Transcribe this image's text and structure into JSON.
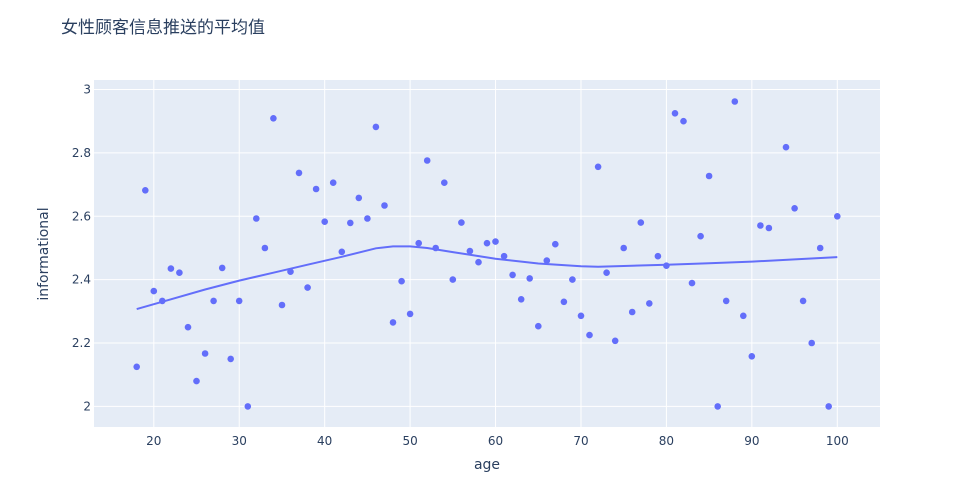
{
  "chart_data": {
    "type": "scatter",
    "title": "女性顾客信息推送的平均值",
    "xlabel": "age",
    "ylabel": "informational",
    "xlim": [
      13,
      105
    ],
    "ylim": [
      1.935,
      3.03
    ],
    "x_ticks": [
      20,
      30,
      40,
      50,
      60,
      70,
      80,
      90,
      100
    ],
    "y_ticks": [
      2,
      2.2,
      2.4,
      2.6,
      2.8,
      3
    ],
    "grid": true,
    "marker_color": "#636efa",
    "plot_bg": "#e5ecf6",
    "series": [
      {
        "mode": "markers",
        "x": [
          18,
          19,
          20,
          21,
          22,
          23,
          24,
          25,
          26,
          27,
          28,
          29,
          30,
          31,
          32,
          33,
          34,
          35,
          36,
          37,
          38,
          39,
          40,
          41,
          42,
          43,
          44,
          45,
          46,
          47,
          48,
          49,
          50,
          51,
          52,
          53,
          54,
          55,
          56,
          57,
          58,
          59,
          60,
          61,
          62,
          63,
          64,
          65,
          66,
          67,
          68,
          69,
          70,
          71,
          72,
          73,
          74,
          75,
          76,
          77,
          78,
          79,
          80,
          81,
          82,
          83,
          84,
          85,
          86,
          87,
          88,
          89,
          90,
          91,
          92,
          94,
          95,
          96,
          97,
          98,
          99,
          100
        ],
        "y": [
          2.125,
          2.682,
          2.364,
          2.333,
          2.435,
          2.422,
          2.25,
          2.08,
          2.167,
          2.333,
          2.437,
          2.15,
          2.333,
          2.0,
          2.593,
          2.5,
          2.909,
          2.32,
          2.425,
          2.737,
          2.375,
          2.686,
          2.583,
          2.706,
          2.488,
          2.579,
          2.658,
          2.593,
          2.882,
          2.634,
          2.265,
          2.395,
          2.292,
          2.515,
          2.776,
          2.5,
          2.706,
          2.4,
          2.58,
          2.49,
          2.455,
          2.515,
          2.52,
          2.474,
          2.415,
          2.338,
          2.404,
          2.253,
          2.46,
          2.512,
          2.33,
          2.4,
          2.286,
          2.225,
          2.756,
          2.422,
          2.207,
          2.5,
          2.298,
          2.58,
          2.325,
          2.474,
          2.444,
          2.925,
          2.9,
          2.389,
          2.537,
          2.727,
          2.0,
          2.333,
          2.962,
          2.286,
          2.158,
          2.571,
          2.563,
          2.818,
          2.625,
          2.333,
          2.2,
          2.5,
          2.0,
          2.6
        ]
      },
      {
        "mode": "lines",
        "x": [
          18,
          22,
          26,
          30,
          34,
          38,
          42,
          46,
          48,
          50,
          52,
          55,
          60,
          65,
          70,
          72,
          75,
          80,
          85,
          90,
          95,
          100
        ],
        "y": [
          2.307,
          2.338,
          2.369,
          2.397,
          2.422,
          2.447,
          2.472,
          2.499,
          2.505,
          2.505,
          2.5,
          2.487,
          2.466,
          2.451,
          2.442,
          2.441,
          2.443,
          2.447,
          2.452,
          2.457,
          2.464,
          2.471
        ]
      }
    ]
  }
}
